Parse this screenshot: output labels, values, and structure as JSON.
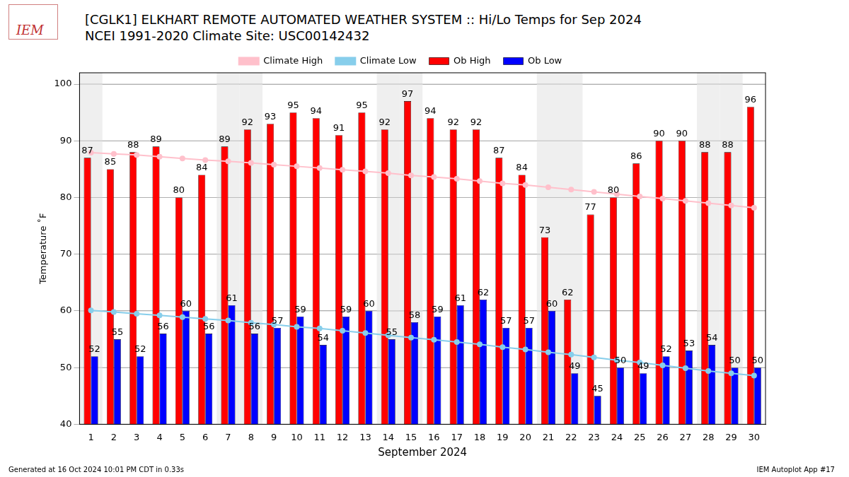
{
  "chart_data": {
    "type": "bar",
    "title": "[CGLK1] ELKHART REMOTE AUTOMATED WEATHER SYSTEM :: Hi/Lo Temps for Sep 2024",
    "subtitle": "NCEI 1991-2020 Climate Site: USC00142432",
    "x_label": "September 2024",
    "y_label": "Temperature ˚F",
    "categories": [
      1,
      2,
      3,
      4,
      5,
      6,
      7,
      8,
      9,
      10,
      11,
      12,
      13,
      14,
      15,
      16,
      17,
      18,
      19,
      20,
      21,
      22,
      23,
      24,
      25,
      26,
      27,
      28,
      29,
      30
    ],
    "series": [
      {
        "name": "Climate High",
        "type": "line",
        "color": "#ffc0cb",
        "marker": "circle",
        "values": [
          87.9,
          87.7,
          87.5,
          87.2,
          86.9,
          86.6,
          86.4,
          86.1,
          85.8,
          85.5,
          85.2,
          84.9,
          84.6,
          84.3,
          83.9,
          83.6,
          83.3,
          82.9,
          82.5,
          82.2,
          81.8,
          81.4,
          81.0,
          80.6,
          80.2,
          79.8,
          79.4,
          79.0,
          78.6,
          78.2
        ]
      },
      {
        "name": "Climate Low",
        "type": "line",
        "color": "#87ceeb",
        "marker": "circle",
        "values": [
          60.1,
          59.8,
          59.5,
          59.2,
          58.9,
          58.6,
          58.3,
          57.9,
          57.6,
          57.2,
          56.9,
          56.5,
          56.1,
          55.7,
          55.3,
          54.9,
          54.5,
          54.1,
          53.6,
          53.2,
          52.7,
          52.3,
          51.8,
          51.3,
          50.9,
          50.4,
          49.9,
          49.4,
          49.0,
          48.6
        ]
      },
      {
        "name": "Ob High",
        "type": "bar",
        "color": "#ff0000",
        "data_labels": true,
        "values": [
          87,
          85,
          88,
          89,
          80,
          84,
          89,
          92,
          93,
          95,
          94,
          91,
          95,
          92,
          97,
          94,
          92,
          92,
          87,
          84,
          73,
          62,
          77,
          80,
          86,
          90,
          90,
          88,
          88,
          96
        ]
      },
      {
        "name": "Ob Low",
        "type": "bar",
        "color": "#0000ff",
        "data_labels": true,
        "values": [
          52,
          55,
          52,
          56,
          60,
          56,
          61,
          56,
          57,
          59,
          54,
          59,
          60,
          55,
          58,
          59,
          61,
          62,
          57,
          57,
          60,
          49,
          45,
          50,
          49,
          52,
          53,
          54,
          50,
          50
        ]
      }
    ],
    "shaded_categories": [
      1,
      7,
      8,
      14,
      15,
      21,
      22,
      28,
      29
    ],
    "ylim": [
      40,
      102
    ],
    "yticks": [
      40,
      50,
      60,
      70,
      80,
      90,
      100
    ],
    "grid": true,
    "legend": "top",
    "logo": "IEM",
    "footer_left": "Generated at 16 Oct 2024 10:01 PM CDT in 0.33s",
    "footer_right": "IEM Autoplot App #17"
  }
}
